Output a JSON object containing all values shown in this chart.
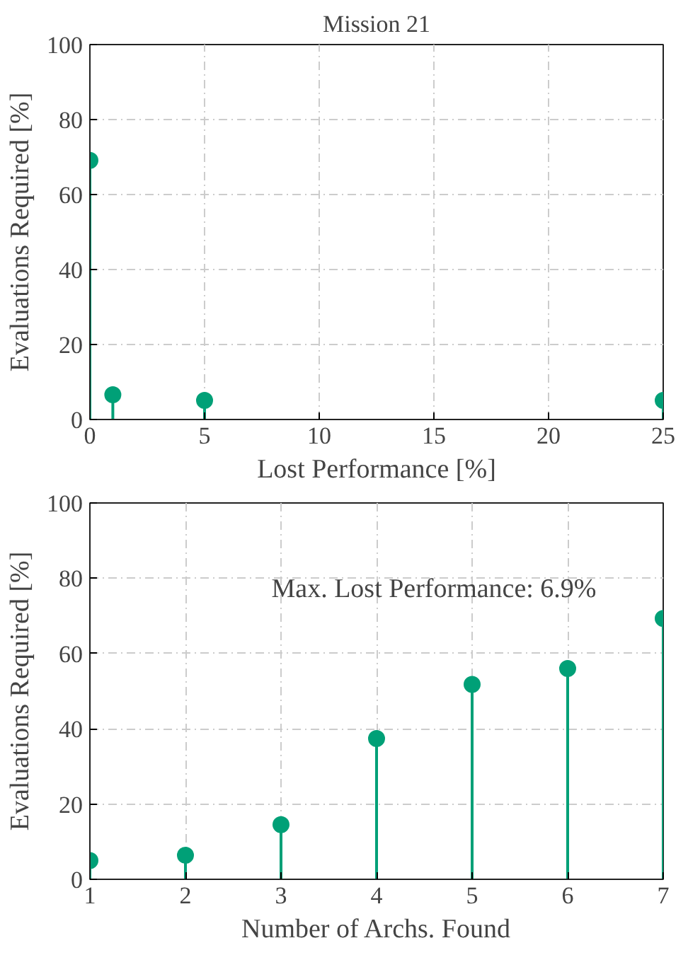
{
  "chart_data": [
    {
      "type": "lollipop",
      "title": "Mission 21",
      "xlabel": "Lost Performance [%]",
      "ylabel": "Evaluations Required [%]",
      "x": [
        0,
        1,
        5,
        25
      ],
      "values": [
        69.1,
        6.6,
        5.1,
        5.1
      ],
      "color": "#00a077",
      "xlim": [
        0,
        25
      ],
      "xticks": [
        0,
        5,
        10,
        15,
        20,
        25
      ],
      "ylim": [
        0,
        100
      ],
      "yticks": [
        0,
        20,
        40,
        60,
        80,
        100
      ],
      "grid": true,
      "marker": "circle"
    },
    {
      "type": "lollipop",
      "xlabel": "Number of Archs. Found",
      "ylabel": "Evaluations Required [%]",
      "x": [
        1,
        2,
        3,
        4,
        5,
        6,
        7
      ],
      "values": [
        5.0,
        6.4,
        14.5,
        37.4,
        51.8,
        56.0,
        69.3
      ],
      "color": "#00a077",
      "xlim": [
        1,
        7
      ],
      "xticks": [
        1,
        2,
        3,
        4,
        5,
        6,
        7
      ],
      "ylim": [
        0,
        100
      ],
      "yticks": [
        0,
        20,
        40,
        60,
        80,
        100
      ],
      "grid": true,
      "marker": "circle",
      "annotations": [
        "Max. Lost Performance: 6.9%"
      ]
    }
  ]
}
